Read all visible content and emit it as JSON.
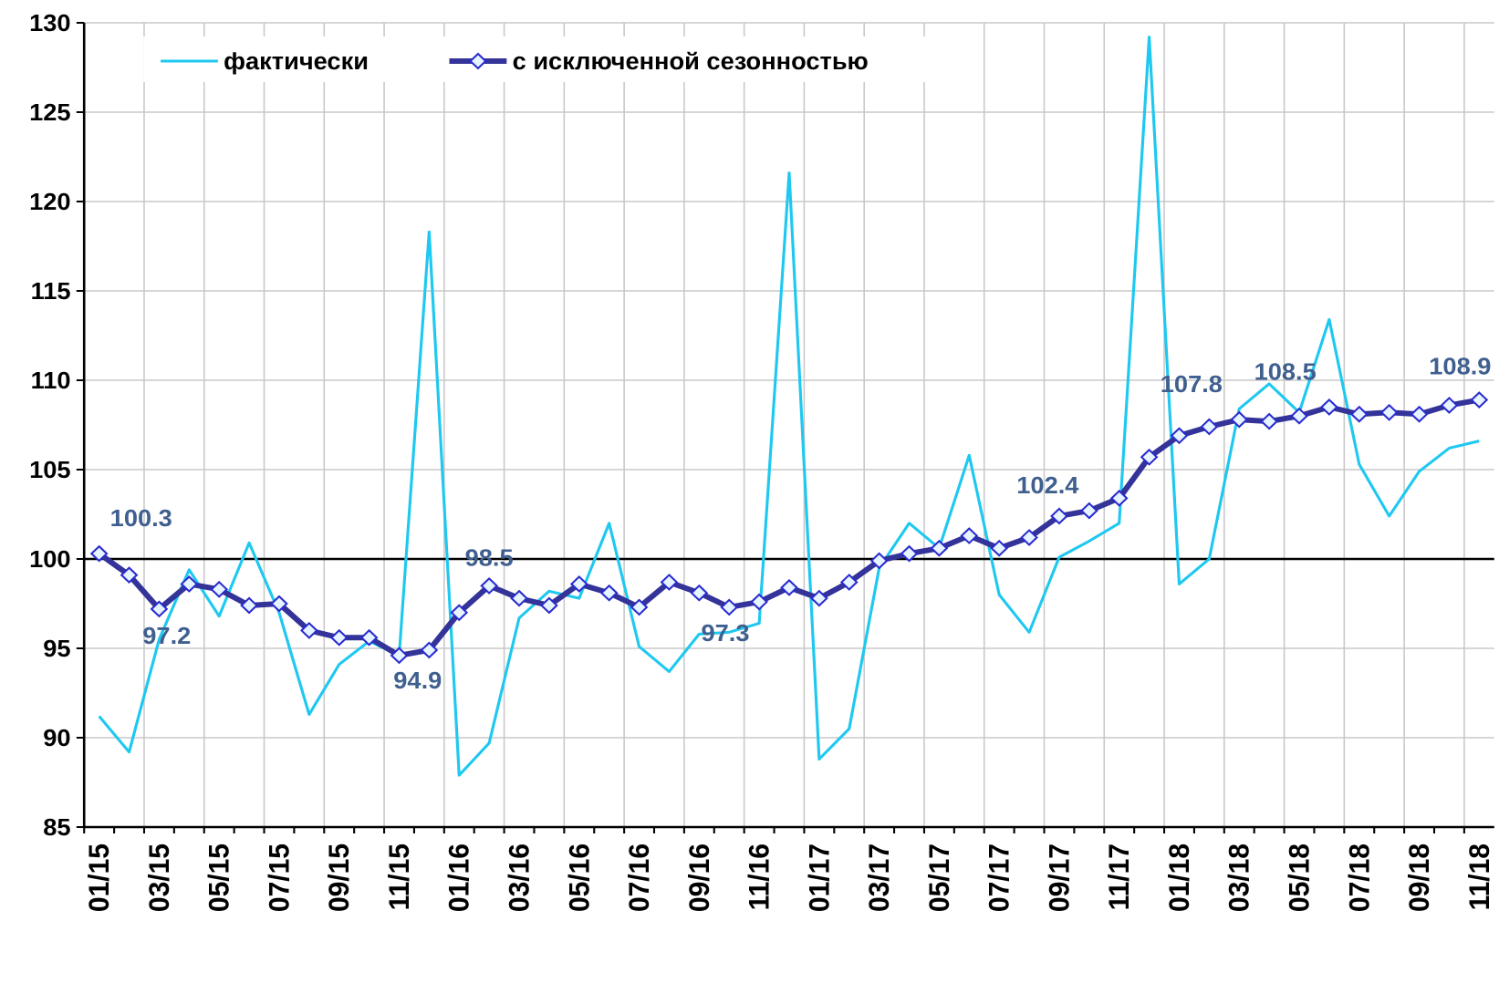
{
  "chart_data": {
    "type": "line",
    "categories": [
      "01/15",
      null,
      "03/15",
      null,
      "05/15",
      null,
      "07/15",
      null,
      "09/15",
      null,
      "11/15",
      null,
      "01/16",
      null,
      "03/16",
      null,
      "05/16",
      null,
      "07/16",
      null,
      "09/16",
      null,
      "11/16",
      null,
      "01/17",
      null,
      "03/17",
      null,
      "05/17",
      null,
      "07/17",
      null,
      "09/17",
      null,
      "11/17",
      null,
      "01/18",
      null,
      "03/18",
      null,
      "05/18",
      null,
      "07/18",
      null,
      "09/18",
      null,
      "11/18"
    ],
    "series": [
      {
        "name": "фактически",
        "color": "#1ec8f0",
        "values": [
          91.2,
          89.2,
          95.5,
          99.4,
          96.8,
          100.9,
          97.0,
          91.3,
          94.1,
          95.4,
          94.6,
          118.3,
          87.9,
          89.7,
          96.7,
          98.2,
          97.8,
          102.0,
          95.1,
          93.7,
          95.8,
          95.9,
          96.4,
          121.6,
          88.8,
          90.5,
          99.5,
          102.0,
          100.6,
          105.8,
          98.0,
          95.9,
          100.1,
          101.0,
          102.0,
          129.2,
          98.6,
          100.0,
          108.4,
          109.8,
          108.2,
          113.4,
          105.3,
          102.4,
          104.9,
          106.2,
          106.6
        ]
      },
      {
        "name": "с исключенной сезонностью",
        "color": "#333399",
        "marker": "diamond",
        "values": [
          100.3,
          99.1,
          97.2,
          98.6,
          98.3,
          97.4,
          97.5,
          96.0,
          95.6,
          95.6,
          94.6,
          94.9,
          97.0,
          98.5,
          97.8,
          97.4,
          98.6,
          98.1,
          97.3,
          98.7,
          98.1,
          97.3,
          97.6,
          98.4,
          97.8,
          98.7,
          99.9,
          100.3,
          100.6,
          101.3,
          100.6,
          101.2,
          102.4,
          102.7,
          103.4,
          105.7,
          106.9,
          107.4,
          107.8,
          107.7,
          108.0,
          108.5,
          108.1,
          108.2,
          108.1,
          108.6,
          108.9
        ],
        "value_labels": [
          "100.3",
          null,
          "97.2",
          null,
          null,
          null,
          null,
          null,
          null,
          null,
          null,
          "94.9",
          null,
          "98.5",
          null,
          null,
          null,
          null,
          null,
          null,
          null,
          "97.3",
          null,
          null,
          null,
          null,
          null,
          null,
          null,
          null,
          null,
          null,
          "102.4",
          null,
          null,
          null,
          null,
          null,
          "107.8",
          null,
          null,
          "108.5",
          null,
          null,
          null,
          null,
          "108.9"
        ],
        "label_color": "#3f5f8f"
      }
    ],
    "ylim": [
      85,
      130
    ],
    "yticks": [
      85,
      90,
      95,
      100,
      105,
      110,
      115,
      120,
      125,
      130
    ],
    "baseline": 100,
    "grid": true,
    "legend": "top"
  }
}
